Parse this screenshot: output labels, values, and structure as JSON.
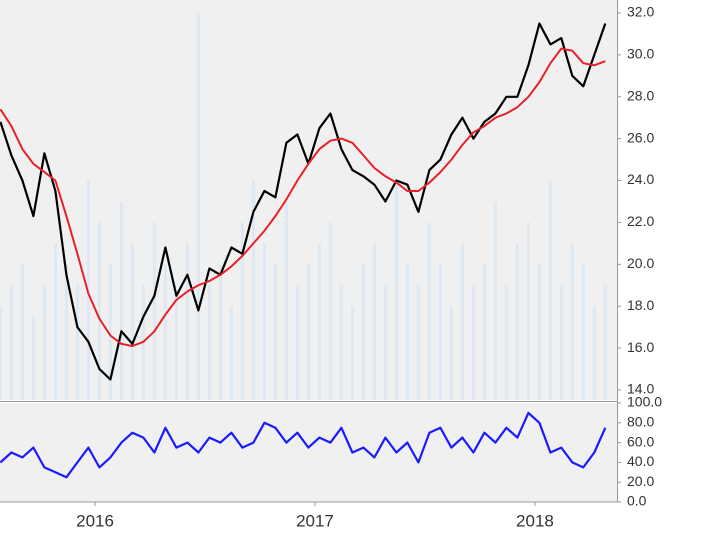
{
  "chart_data": [
    {
      "type": "line",
      "x": [
        2015.57,
        2015.62,
        2015.67,
        2015.72,
        2015.77,
        2015.82,
        2015.87,
        2015.92,
        2015.97,
        2016.02,
        2016.07,
        2016.12,
        2016.17,
        2016.22,
        2016.27,
        2016.32,
        2016.37,
        2016.42,
        2016.47,
        2016.52,
        2016.57,
        2016.62,
        2016.67,
        2016.72,
        2016.77,
        2016.82,
        2016.87,
        2016.92,
        2016.97,
        2017.02,
        2017.07,
        2017.12,
        2017.17,
        2017.22,
        2017.27,
        2017.32,
        2017.37,
        2017.42,
        2017.47,
        2017.52,
        2017.57,
        2017.62,
        2017.67,
        2017.72,
        2017.77,
        2017.82,
        2017.87,
        2017.92,
        2017.97,
        2018.02,
        2018.07,
        2018.12,
        2018.17,
        2018.22,
        2018.27,
        2018.32
      ],
      "xlim": [
        2015.568,
        2018.373
      ],
      "ylim": [
        13.52,
        32.62
      ],
      "yticks": [
        {
          "value": 14,
          "label": "14.0"
        },
        {
          "value": 16,
          "label": "16.0"
        },
        {
          "value": 18,
          "label": "18.0"
        },
        {
          "value": 20,
          "label": "20.0"
        },
        {
          "value": 22,
          "label": "22.0"
        },
        {
          "value": 24,
          "label": "24.0"
        },
        {
          "value": 26,
          "label": "26.0"
        },
        {
          "value": 28,
          "label": "28.0"
        },
        {
          "value": 30,
          "label": "30.0"
        },
        {
          "value": 32,
          "label": "32.0"
        }
      ],
      "series": [
        {
          "kind": "bar",
          "color": "#dde8f3",
          "values": [
            18,
            19,
            20,
            17.5,
            19,
            21,
            20,
            19,
            24,
            22,
            20,
            23,
            21,
            19,
            22,
            20,
            18.5,
            21,
            32,
            19,
            20,
            18,
            22,
            24,
            21,
            20,
            23,
            19,
            20,
            21,
            22,
            19,
            18,
            20,
            21,
            19,
            24,
            20,
            19,
            22,
            20,
            18,
            21,
            19,
            20,
            23,
            19,
            21,
            22,
            20,
            24,
            19,
            21,
            20,
            18,
            19
          ]
        },
        {
          "kind": "line",
          "color": "#000000",
          "values": [
            26.8,
            25.2,
            24.0,
            22.3,
            25.3,
            23.5,
            19.5,
            17.0,
            16.3,
            15.0,
            14.5,
            16.8,
            16.2,
            17.5,
            18.5,
            20.8,
            18.5,
            19.5,
            17.8,
            19.8,
            19.5,
            20.8,
            20.5,
            22.5,
            23.5,
            23.2,
            25.8,
            26.2,
            24.8,
            26.5,
            27.2,
            25.5,
            24.5,
            24.2,
            23.8,
            23.0,
            24.0,
            23.8,
            22.5,
            24.5,
            25.0,
            26.2,
            27.0,
            26.0,
            26.8,
            27.2,
            28.0,
            28.0,
            29.5,
            31.5,
            30.5,
            30.8,
            29.0,
            28.5,
            30.0,
            31.5
          ]
        },
        {
          "kind": "line",
          "color": "#e8202a",
          "values": [
            27.4,
            26.6,
            25.5,
            24.8,
            24.4,
            24.0,
            22.3,
            20.5,
            18.6,
            17.4,
            16.6,
            16.2,
            16.1,
            16.3,
            16.8,
            17.6,
            18.3,
            18.7,
            19.0,
            19.2,
            19.5,
            19.9,
            20.4,
            21.0,
            21.6,
            22.3,
            23.1,
            24.0,
            24.8,
            25.5,
            25.9,
            26.0,
            25.8,
            25.2,
            24.6,
            24.2,
            23.9,
            23.5,
            23.5,
            23.9,
            24.4,
            25.0,
            25.7,
            26.3,
            26.6,
            27.0,
            27.2,
            27.5,
            28.0,
            28.7,
            29.6,
            30.3,
            30.2,
            29.6,
            29.5,
            29.7
          ]
        }
      ]
    },
    {
      "type": "line",
      "x": [
        2015.57,
        2015.62,
        2015.67,
        2015.72,
        2015.77,
        2015.82,
        2015.87,
        2015.92,
        2015.97,
        2016.02,
        2016.07,
        2016.12,
        2016.17,
        2016.22,
        2016.27,
        2016.32,
        2016.37,
        2016.42,
        2016.47,
        2016.52,
        2016.57,
        2016.62,
        2016.67,
        2016.72,
        2016.77,
        2016.82,
        2016.87,
        2016.92,
        2016.97,
        2017.02,
        2017.07,
        2017.12,
        2017.17,
        2017.22,
        2017.27,
        2017.32,
        2017.37,
        2017.42,
        2017.47,
        2017.52,
        2017.57,
        2017.62,
        2017.67,
        2017.72,
        2017.77,
        2017.82,
        2017.87,
        2017.92,
        2017.97,
        2018.02,
        2018.07,
        2018.12,
        2018.17,
        2018.22,
        2018.27,
        2018.32
      ],
      "xlim": [
        2015.568,
        2018.373
      ],
      "xticks": [
        2016,
        2017,
        2018
      ],
      "ylim": [
        0,
        100
      ],
      "yticks": [
        {
          "value": 0,
          "label": "0.0"
        },
        {
          "value": 20,
          "label": "20.0"
        },
        {
          "value": 40,
          "label": "40.0"
        },
        {
          "value": 60,
          "label": "60.0"
        },
        {
          "value": 80,
          "label": "80.0"
        },
        {
          "value": 100,
          "label": "100.0"
        }
      ],
      "series": [
        {
          "kind": "line",
          "color": "#1a1aff",
          "values": [
            40,
            50,
            45,
            55,
            35,
            30,
            25,
            40,
            55,
            35,
            45,
            60,
            70,
            65,
            50,
            75,
            55,
            60,
            50,
            65,
            60,
            70,
            55,
            60,
            80,
            75,
            60,
            70,
            55,
            65,
            60,
            75,
            50,
            55,
            45,
            65,
            50,
            60,
            40,
            70,
            75,
            55,
            65,
            50,
            70,
            60,
            75,
            65,
            90,
            80,
            50,
            55,
            40,
            35,
            50,
            75
          ]
        }
      ]
    }
  ]
}
